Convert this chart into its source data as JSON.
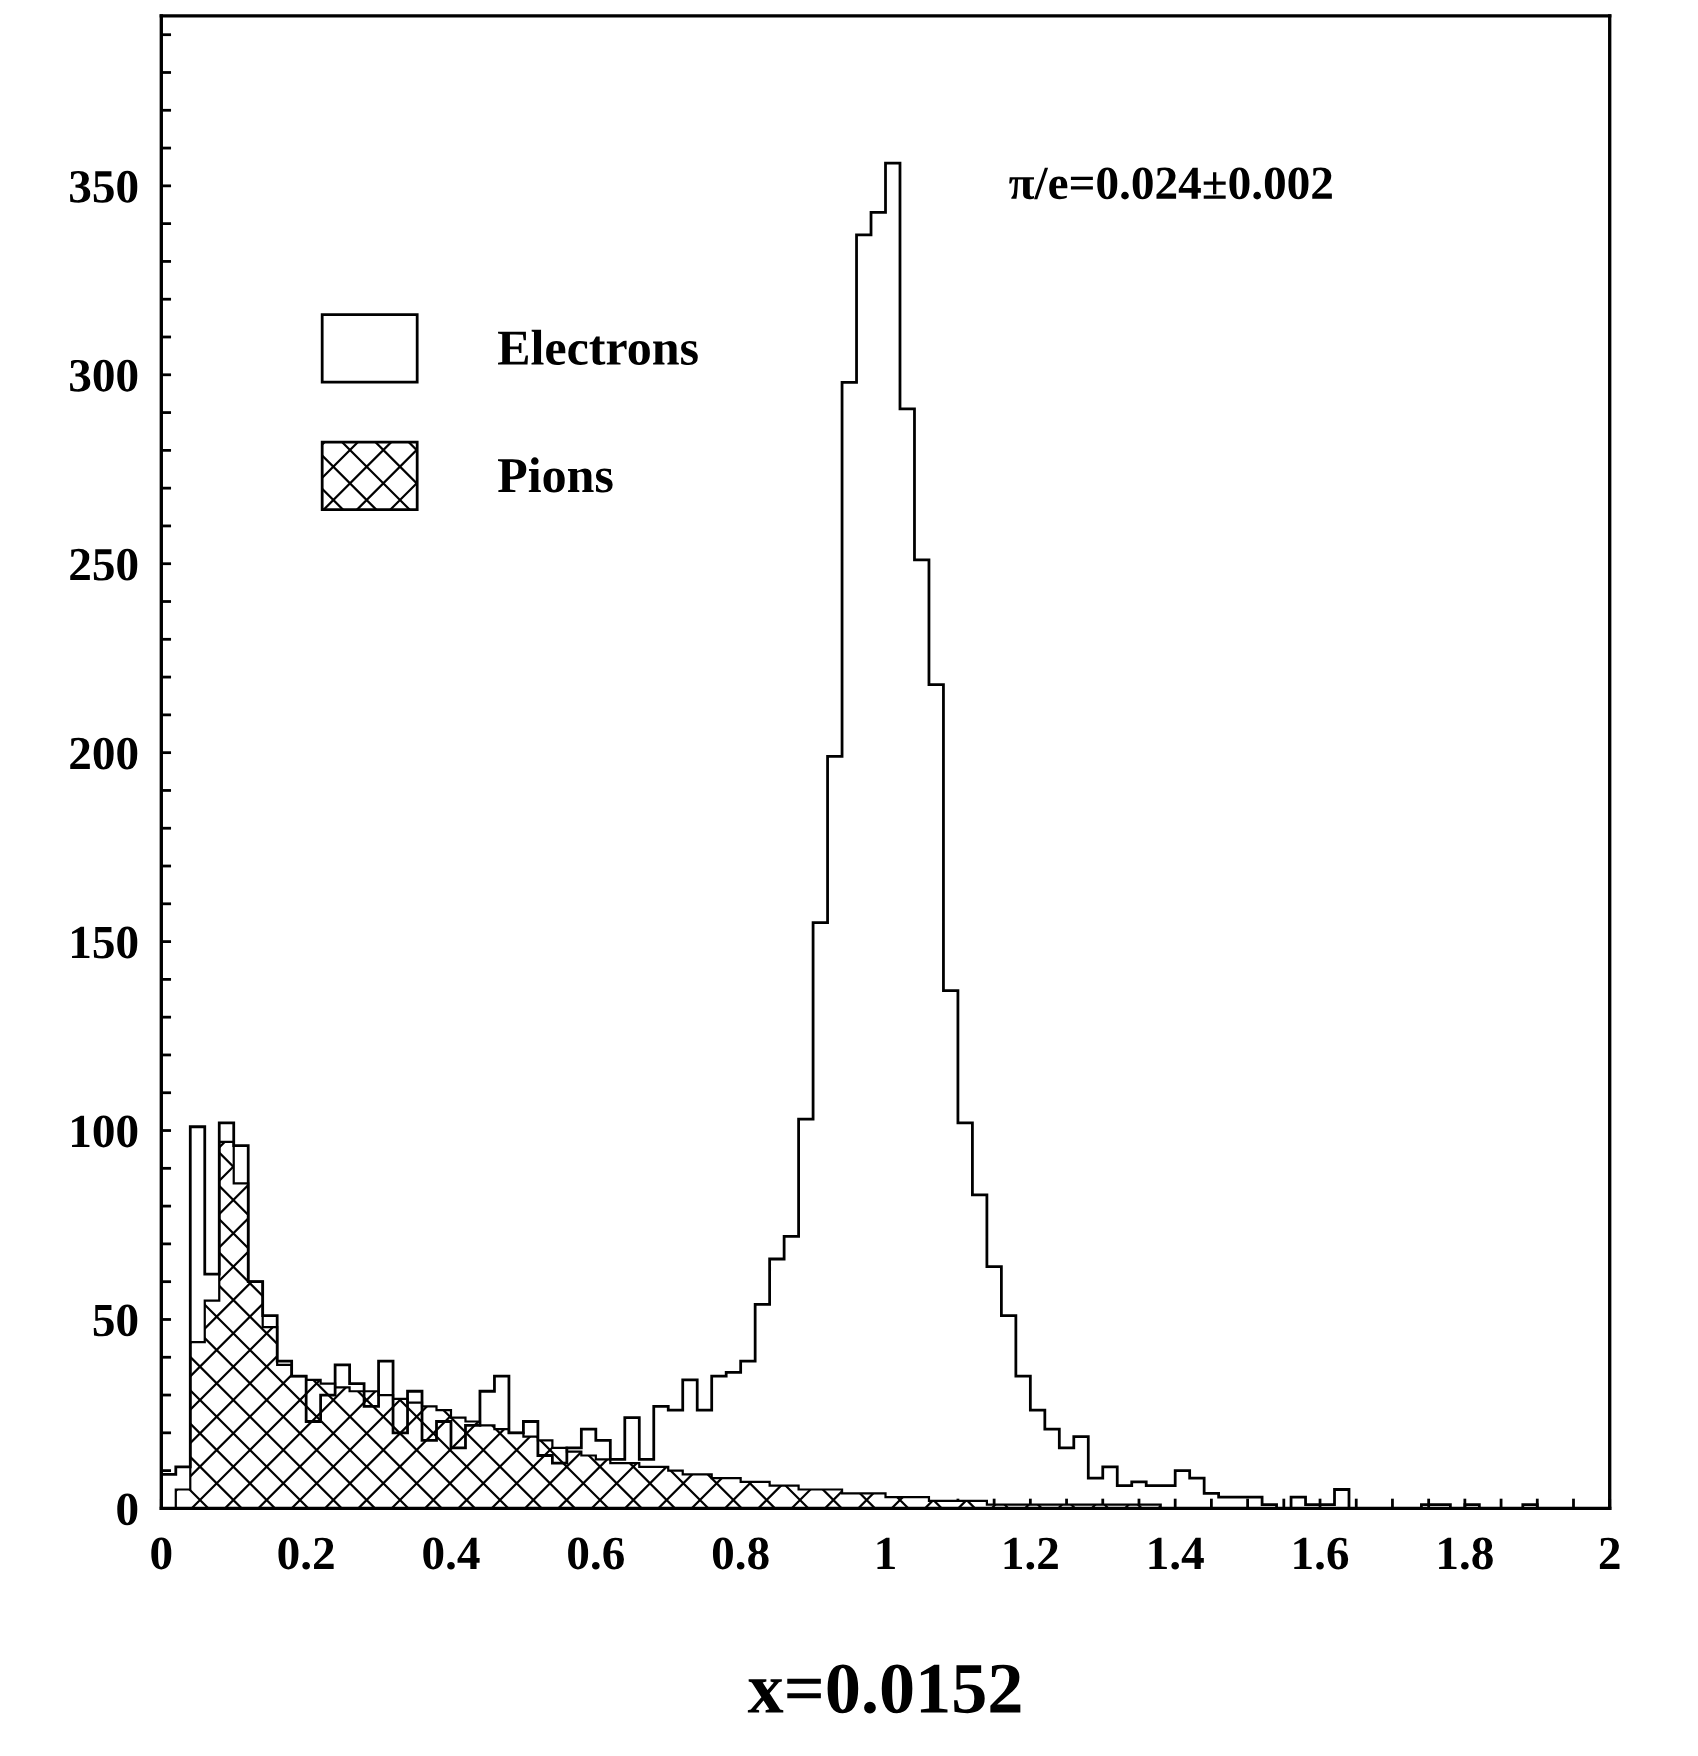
{
  "chart_data": {
    "type": "histogram",
    "xlabel": "x=0.0152",
    "annotations": [
      "π/e=0.024±0.002"
    ],
    "bins": [
      0,
      0.02,
      0.04,
      0.06,
      0.08,
      0.1,
      0.12,
      0.14,
      0.16,
      0.18,
      0.2,
      0.22,
      0.24,
      0.26,
      0.28,
      0.3,
      0.32,
      0.34,
      0.36,
      0.38,
      0.4,
      0.42,
      0.44,
      0.46,
      0.48,
      0.5,
      0.52,
      0.54,
      0.56,
      0.58,
      0.6,
      0.62,
      0.64,
      0.66,
      0.68,
      0.7,
      0.72,
      0.74,
      0.76,
      0.78,
      0.8,
      0.82,
      0.84,
      0.86,
      0.88,
      0.9,
      0.92,
      0.94,
      0.96,
      0.98,
      1,
      1.02,
      1.04,
      1.06,
      1.08,
      1.1,
      1.12,
      1.14,
      1.16,
      1.18,
      1.2,
      1.22,
      1.24,
      1.26,
      1.28,
      1.3,
      1.32,
      1.34,
      1.36,
      1.38,
      1.4,
      1.42,
      1.44,
      1.46,
      1.48,
      1.5,
      1.52,
      1.54,
      1.56,
      1.58,
      1.6,
      1.62,
      1.64,
      1.66,
      1.68,
      1.7,
      1.72,
      1.74,
      1.76,
      1.78,
      1.8,
      1.82,
      1.84,
      1.86,
      1.88,
      1.9,
      1.92,
      1.94,
      1.96,
      1.98,
      2
    ],
    "series": [
      {
        "name": "Electrons",
        "color": "#000000",
        "values": [
          9,
          11,
          101,
          62,
          102,
          96,
          60,
          51,
          39,
          35,
          23,
          30,
          38,
          33,
          27,
          39,
          20,
          31,
          18,
          23,
          16,
          22,
          31,
          35,
          20,
          23,
          14,
          12,
          16,
          21,
          18,
          13,
          24,
          13,
          27,
          26,
          34,
          26,
          35,
          36,
          39,
          54,
          66,
          72,
          103,
          155,
          199,
          298,
          337,
          343,
          356,
          291,
          251,
          218,
          137,
          102,
          83,
          64,
          51,
          35,
          26,
          21,
          16,
          19,
          8,
          11,
          6,
          7,
          6,
          6,
          10,
          8,
          4,
          3,
          3,
          3,
          1,
          0,
          3,
          1,
          1,
          5,
          0,
          0,
          0,
          0,
          0,
          1,
          1,
          0,
          1,
          0,
          0,
          0,
          1,
          0,
          0,
          0,
          0,
          0
        ]
      },
      {
        "name": "Pions",
        "color": "#000000",
        "values": [
          0,
          5,
          44,
          55,
          97,
          86,
          60,
          48,
          38,
          35,
          34,
          33,
          32,
          31,
          31,
          30,
          29,
          28,
          27,
          26,
          24,
          23,
          22,
          21,
          20,
          19,
          18,
          16,
          15,
          14,
          13,
          12,
          12,
          11,
          11,
          10,
          9,
          9,
          8,
          8,
          7,
          7,
          6,
          6,
          5,
          5,
          5,
          4,
          4,
          4,
          3,
          3,
          3,
          2,
          2,
          2,
          2,
          1,
          1,
          1,
          1,
          1,
          1,
          1,
          1,
          1,
          1,
          1,
          1,
          0,
          0,
          0,
          0,
          0,
          0,
          0,
          0,
          0,
          0,
          0,
          0,
          0,
          0,
          0,
          0,
          0,
          0,
          0,
          0,
          0,
          0,
          0,
          0,
          0,
          0,
          0,
          0,
          0,
          0,
          0
        ]
      }
    ],
    "xlim": [
      0,
      2
    ],
    "ylim": [
      0,
      395
    ],
    "xticks": [
      0,
      {
        "value": 0.05,
        "label": null
      },
      {
        "value": 0.1,
        "label": null
      },
      {
        "value": 0.15,
        "label": null
      },
      0.2,
      {
        "value": 0.25,
        "label": null
      },
      {
        "value": 0.3,
        "label": null
      },
      {
        "value": 0.35,
        "label": null
      },
      0.4,
      {
        "value": 0.45,
        "label": null
      },
      {
        "value": 0.5,
        "label": null
      },
      {
        "value": 0.55,
        "label": null
      },
      0.6,
      {
        "value": 0.65,
        "label": null
      },
      {
        "value": 0.7,
        "label": null
      },
      {
        "value": 0.75,
        "label": null
      },
      0.8,
      {
        "value": 0.85,
        "label": null
      },
      {
        "value": 0.9,
        "label": null
      },
      {
        "value": 0.95,
        "label": null
      },
      1,
      {
        "value": 1.05,
        "label": null
      },
      {
        "value": 1.1,
        "label": null
      },
      {
        "value": 1.15,
        "label": null
      },
      1.2,
      {
        "value": 1.25,
        "label": null
      },
      {
        "value": 1.3,
        "label": null
      },
      {
        "value": 1.35,
        "label": null
      },
      1.4,
      {
        "value": 1.45,
        "label": null
      },
      {
        "value": 1.5,
        "label": null
      },
      {
        "value": 1.55,
        "label": null
      },
      1.6,
      {
        "value": 1.65,
        "label": null
      },
      {
        "value": 1.7,
        "label": null
      },
      {
        "value": 1.75,
        "label": null
      },
      1.8,
      {
        "value": 1.85,
        "label": null
      },
      {
        "value": 1.9,
        "label": null
      },
      {
        "value": 1.95,
        "label": null
      },
      2
    ],
    "yticks": [
      0,
      {
        "value": 10,
        "label": null
      },
      {
        "value": 20,
        "label": null
      },
      {
        "value": 30,
        "label": null
      },
      {
        "value": 40,
        "label": null
      },
      50,
      {
        "value": 60,
        "label": null
      },
      {
        "value": 70,
        "label": null
      },
      {
        "value": 80,
        "label": null
      },
      {
        "value": 90,
        "label": null
      },
      100,
      {
        "value": 110,
        "label": null
      },
      {
        "value": 120,
        "label": null
      },
      {
        "value": 130,
        "label": null
      },
      {
        "value": 140,
        "label": null
      },
      150,
      {
        "value": 160,
        "label": null
      },
      {
        "value": 170,
        "label": null
      },
      {
        "value": 180,
        "label": null
      },
      {
        "value": 190,
        "label": null
      },
      200,
      {
        "value": 210,
        "label": null
      },
      {
        "value": 220,
        "label": null
      },
      {
        "value": 230,
        "label": null
      },
      {
        "value": 240,
        "label": null
      },
      250,
      {
        "value": 260,
        "label": null
      },
      {
        "value": 270,
        "label": null
      },
      {
        "value": 280,
        "label": null
      },
      {
        "value": 290,
        "label": null
      },
      300,
      {
        "value": 310,
        "label": null
      },
      {
        "value": 320,
        "label": null
      },
      {
        "value": 330,
        "label": null
      },
      {
        "value": 340,
        "label": null
      },
      350,
      {
        "value": 360,
        "label": null
      },
      {
        "value": 370,
        "label": null
      },
      {
        "value": 380,
        "label": null
      },
      {
        "value": 390,
        "label": null
      }
    ],
    "legend": "top left",
    "grid": false
  }
}
